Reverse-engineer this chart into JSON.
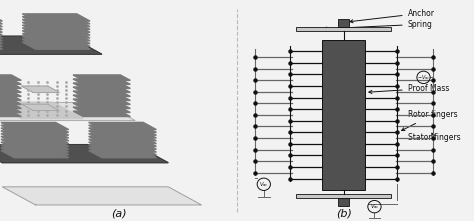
{
  "bg_color": "#f2f2f2",
  "panel_a_label": "(a)",
  "panel_b_label": "(b)",
  "labels": {
    "anchor": "Anchor",
    "spring": "Spring",
    "vac_neg": "$-V_{ac}$",
    "proof_mass": "Proof Mass",
    "rotor_fingers": "Rotor fingers",
    "stator_fingers": "Stator fingers",
    "vac_left": "$V_{ac}$",
    "vac_bottom": "$V_{ac}$"
  },
  "colors": {
    "dark_gray": "#505050",
    "mid_gray": "#787878",
    "light_gray": "#c8c8c8",
    "very_light_gray": "#e2e2e2",
    "finger_dark": "#606060",
    "black": "#111111",
    "dashed_line": "#aaaaaa",
    "bg": "#f2f2f2"
  }
}
